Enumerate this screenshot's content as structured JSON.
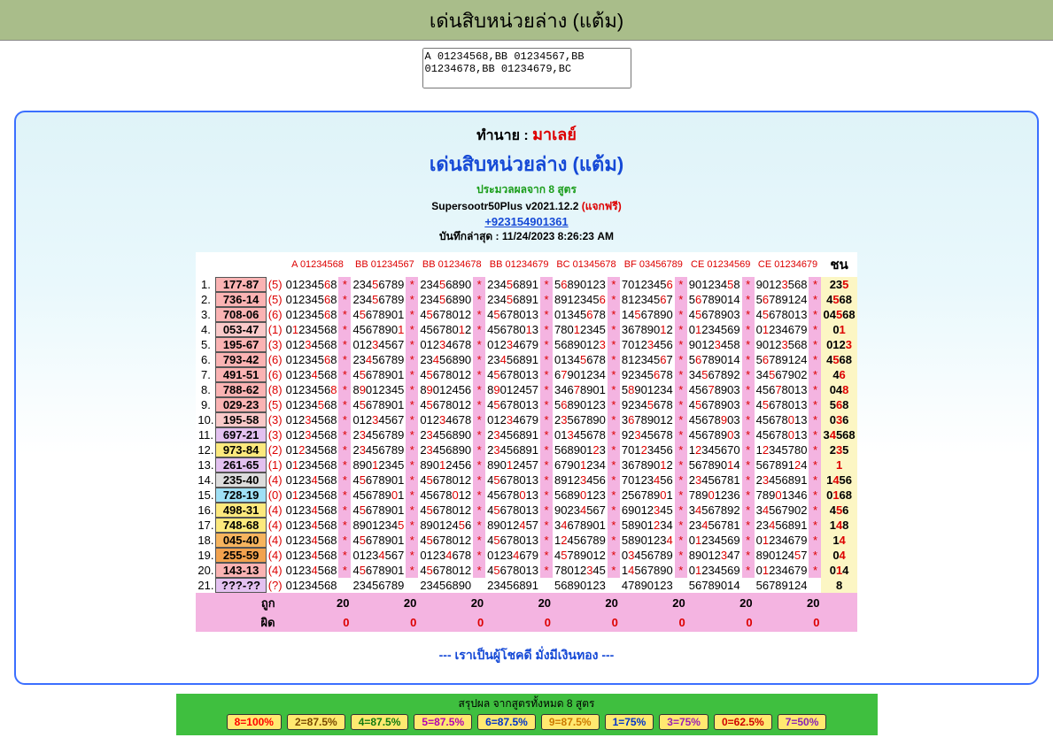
{
  "title_bar": "เด่นสิบหน่วยล่าง (แต้ม)",
  "text_input": "A 01234568,BB 01234567,BB 01234678,BB 01234679,BC",
  "header": {
    "line1_prefix": "ทำนาย : ",
    "line1_red": "มาเลย์",
    "line2": "เด่นสิบหน่วยล่าง (แต้ม)",
    "line3": "ประมวลผลจาก 8 สูตร",
    "line4_a": "Supersootr50Plus v2021.12.2 ",
    "line4_free": "(แจกฟรี)",
    "line5_phone": "+923154901361",
    "line6_prefix": "บันทึกล่าสุด : ",
    "line6_ts": "11/24/2023 8:26:23 AM"
  },
  "col_headers": [
    "A 01234568",
    "BB 01234567",
    "BB 01234678",
    "BB 01234679",
    "BC 01345678",
    "BF 03456789",
    "CE 01234569",
    "CE 01234679"
  ],
  "win_header": "ชน",
  "code_colors": {
    "pink": "#fab3b3",
    "lpink": "#f9c9c9",
    "purple": "#e3c1f0",
    "yellow": "#fce97d",
    "grey": "#dcdcdc",
    "orange": "#f6b45e",
    "orange2": "#f2a24e",
    "cyan": "#9fe0f5"
  },
  "rows": [
    {
      "n": 1,
      "code": "177-87",
      "cc": "pink",
      "cnt": 5,
      "cols": [
        [
          "012345",
          "6",
          "8"
        ],
        [
          "234",
          "5",
          "6789"
        ],
        [
          "234",
          "5",
          "6890"
        ],
        [
          "234",
          "5",
          "6891"
        ],
        [
          "5",
          "6",
          "890123"
        ],
        [
          "7012345",
          "6",
          ""
        ],
        [
          "901234",
          "5",
          "8"
        ],
        [
          "9012",
          "3",
          "568"
        ]
      ],
      "win": [
        "23",
        "5",
        ""
      ]
    },
    {
      "n": 2,
      "code": "736-14",
      "cc": "pink",
      "cnt": 5,
      "cols": [
        [
          "012345",
          "6",
          "8"
        ],
        [
          "234",
          "5",
          "6789"
        ],
        [
          "234",
          "5",
          "6890"
        ],
        [
          "234",
          "5",
          "6891"
        ],
        [
          "8912345",
          "6",
          ""
        ],
        [
          "812345",
          "6",
          "7"
        ],
        [
          "5",
          "6",
          "789014"
        ],
        [
          "5",
          "6",
          "789124"
        ]
      ],
      "win": [
        "4",
        "5",
        "68"
      ]
    },
    {
      "n": 3,
      "code": "708-06",
      "cc": "pink",
      "cnt": 6,
      "cols": [
        [
          "012345",
          "6",
          "8"
        ],
        [
          "4",
          "5",
          "678901"
        ],
        [
          "4",
          "5",
          "678012"
        ],
        [
          "4",
          "5",
          "678013"
        ],
        [
          "01345",
          "6",
          "78"
        ],
        [
          "14",
          "5",
          "67890"
        ],
        [
          "4",
          "5",
          "678903"
        ],
        [
          "4",
          "5",
          "678013"
        ]
      ],
      "win": [
        "04",
        "5",
        "68"
      ]
    },
    {
      "n": 4,
      "code": "053-47",
      "cc": "lpink",
      "cnt": 1,
      "cols": [
        [
          "0",
          "1",
          "234568"
        ],
        [
          "4567890",
          "1",
          ""
        ],
        [
          "456780",
          "1",
          "2"
        ],
        [
          "456780",
          "1",
          "3"
        ],
        [
          "780",
          "1",
          "2345"
        ],
        [
          "367890",
          "1",
          "2"
        ],
        [
          "0",
          "1",
          "234569"
        ],
        [
          "0",
          "1",
          "234679"
        ]
      ],
      "win": [
        "0",
        "1",
        ""
      ]
    },
    {
      "n": 5,
      "code": "195-67",
      "cc": "pink",
      "cnt": 3,
      "cols": [
        [
          "012",
          "3",
          "4568"
        ],
        [
          "012",
          "3",
          "4567"
        ],
        [
          "012",
          "3",
          "4678"
        ],
        [
          "012",
          "3",
          "4679"
        ],
        [
          "5689012",
          "3",
          ""
        ],
        [
          "7012",
          "3",
          "456"
        ],
        [
          "9012",
          "3",
          "458"
        ],
        [
          "9012",
          "3",
          "568"
        ]
      ],
      "win": [
        "012",
        "3",
        ""
      ]
    },
    {
      "n": 6,
      "code": "793-42",
      "cc": "pink",
      "cnt": 6,
      "cols": [
        [
          "012345",
          "6",
          "8"
        ],
        [
          "23",
          "4",
          "56789"
        ],
        [
          "23",
          "4",
          "56890"
        ],
        [
          "23",
          "4",
          "56891"
        ],
        [
          "0134",
          "5",
          "678"
        ],
        [
          "812345",
          "6",
          "7"
        ],
        [
          "5",
          "6",
          "789014"
        ],
        [
          "5",
          "6",
          "789124"
        ]
      ],
      "win": [
        "4",
        "5",
        "68"
      ]
    },
    {
      "n": 7,
      "code": "491-51",
      "cc": "pink",
      "cnt": 6,
      "cols": [
        [
          "0123",
          "4",
          "568"
        ],
        [
          "4",
          "5",
          "678901"
        ],
        [
          "4",
          "5",
          "678012"
        ],
        [
          "4",
          "5",
          "678013"
        ],
        [
          "6",
          "7",
          "901234"
        ],
        [
          "92345",
          "6",
          "78"
        ],
        [
          "34",
          "5",
          "67892"
        ],
        [
          "34",
          "5",
          "67902"
        ]
      ],
      "win": [
        "4",
        "6",
        ""
      ]
    },
    {
      "n": 8,
      "code": "788-62",
      "cc": "pink",
      "cnt": 8,
      "cols": [
        [
          "0123456",
          "8",
          ""
        ],
        [
          "8",
          "9",
          "012345"
        ],
        [
          "8",
          "9",
          "012456"
        ],
        [
          "8",
          "9",
          "012457"
        ],
        [
          "346",
          "7",
          "8901"
        ],
        [
          "5",
          "8",
          "901234"
        ],
        [
          "456",
          "7",
          "8903"
        ],
        [
          "456",
          "7",
          "8013"
        ]
      ],
      "win": [
        "04",
        "8",
        ""
      ]
    },
    {
      "n": 9,
      "code": "029-23",
      "cc": "pink",
      "cnt": 5,
      "cols": [
        [
          "01234",
          "5",
          "68"
        ],
        [
          "4",
          "5",
          "678901"
        ],
        [
          "4",
          "5",
          "678012"
        ],
        [
          "4",
          "5",
          "678013"
        ],
        [
          "5",
          "6",
          "890123"
        ],
        [
          "9234",
          "5",
          "678"
        ],
        [
          "4",
          "5",
          "678903"
        ],
        [
          "4",
          "5",
          "678013"
        ]
      ],
      "win": [
        "5",
        "6",
        "8"
      ]
    },
    {
      "n": 10,
      "code": "195-58",
      "cc": "lpink",
      "cnt": 3,
      "cols": [
        [
          "012",
          "3",
          "4568"
        ],
        [
          "012",
          "3",
          "4567"
        ],
        [
          "012",
          "3",
          "4678"
        ],
        [
          "012",
          "3",
          "4679"
        ],
        [
          "2",
          "3",
          "567890"
        ],
        [
          "3",
          "6",
          "789012"
        ],
        [
          "45678",
          "9",
          "03"
        ],
        [
          "45678",
          "0",
          "13"
        ]
      ],
      "win": [
        "0",
        "3",
        "6"
      ]
    },
    {
      "n": 11,
      "code": "697-21",
      "cc": "purple",
      "cnt": 3,
      "cols": [
        [
          "012",
          "3",
          "4568"
        ],
        [
          "2",
          "3",
          "456789"
        ],
        [
          "2",
          "3",
          "456890"
        ],
        [
          "2",
          "3",
          "456891"
        ],
        [
          "01",
          "3",
          "45678"
        ],
        [
          "92",
          "3",
          "45678"
        ],
        [
          "456789",
          "0",
          "3"
        ],
        [
          "45678",
          "0",
          "13"
        ]
      ],
      "win": [
        "3",
        "4",
        "568"
      ]
    },
    {
      "n": 12,
      "code": "973-84",
      "cc": "yellow",
      "cnt": 2,
      "cols": [
        [
          "01",
          "2",
          "34568"
        ],
        [
          "2",
          "3",
          "456789"
        ],
        [
          "2",
          "3",
          "456890"
        ],
        [
          "2",
          "3",
          "456891"
        ],
        [
          "568901",
          "2",
          "3"
        ],
        [
          "701",
          "2",
          "3456"
        ],
        [
          "1",
          "2",
          "345670"
        ],
        [
          "1",
          "2",
          "345780"
        ]
      ],
      "win": [
        "2",
        "3",
        "5"
      ]
    },
    {
      "n": 13,
      "code": "261-65",
      "cc": "purple",
      "cnt": 1,
      "cols": [
        [
          "0",
          "1",
          "234568"
        ],
        [
          "890",
          "1",
          "2345"
        ],
        [
          "890",
          "1",
          "2456"
        ],
        [
          "890",
          "1",
          "2457"
        ],
        [
          "6790",
          "1",
          "234"
        ],
        [
          "367890",
          "1",
          "2"
        ],
        [
          "567890",
          "1",
          "4"
        ],
        [
          "567891",
          "2",
          "4"
        ]
      ],
      "win": [
        "",
        "1",
        ""
      ]
    },
    {
      "n": 14,
      "code": "235-40",
      "cc": "grey",
      "cnt": 4,
      "cols": [
        [
          "0123",
          "4",
          "568"
        ],
        [
          "4",
          "5",
          "678901"
        ],
        [
          "4",
          "5",
          "678012"
        ],
        [
          "4",
          "5",
          "678013"
        ],
        [
          "8912",
          "3",
          "456"
        ],
        [
          "70123",
          "4",
          "56"
        ],
        [
          "2",
          "3",
          "456781"
        ],
        [
          "2",
          "3",
          "456891"
        ]
      ],
      "win": [
        "1",
        "4",
        "56"
      ]
    },
    {
      "n": 15,
      "code": "728-19",
      "cc": "cyan",
      "cnt": 0,
      "cols": [
        [
          "0",
          "1",
          "234568"
        ],
        [
          "456789",
          "0",
          "1"
        ],
        [
          "45678",
          "0",
          "12"
        ],
        [
          "45678",
          "0",
          "13"
        ],
        [
          "5689",
          "0",
          "123"
        ],
        [
          "256789",
          "0",
          "1"
        ],
        [
          "789",
          "0",
          "1236"
        ],
        [
          "789",
          "0",
          "1346"
        ]
      ],
      "win": [
        "0",
        "1",
        "68"
      ]
    },
    {
      "n": 16,
      "code": "498-31",
      "cc": "yellow",
      "cnt": 4,
      "cols": [
        [
          "0123",
          "4",
          "568"
        ],
        [
          "4",
          "5",
          "678901"
        ],
        [
          "4",
          "5",
          "678012"
        ],
        [
          "4",
          "5",
          "678013"
        ],
        [
          "9023",
          "4",
          "567"
        ],
        [
          "69012",
          "3",
          "45"
        ],
        [
          "3",
          "4",
          "567892"
        ],
        [
          "3",
          "4",
          "567902"
        ]
      ],
      "win": [
        "4",
        "5",
        "6"
      ]
    },
    {
      "n": 17,
      "code": "748-68",
      "cc": "yellow",
      "cnt": 4,
      "cols": [
        [
          "0123",
          "4",
          "568"
        ],
        [
          "8901234",
          "5",
          ""
        ],
        [
          "890124",
          "5",
          "6"
        ],
        [
          "89012",
          "4",
          "57"
        ],
        [
          "3",
          "4",
          "678901"
        ],
        [
          "58901",
          "2",
          "34"
        ],
        [
          "23",
          "4",
          "56781"
        ],
        [
          "23",
          "4",
          "56891"
        ]
      ],
      "win": [
        "1",
        "4",
        "8"
      ]
    },
    {
      "n": 18,
      "code": "045-40",
      "cc": "orange",
      "cnt": 4,
      "cols": [
        [
          "0123",
          "4",
          "568"
        ],
        [
          "4",
          "5",
          "678901"
        ],
        [
          "4",
          "5",
          "678012"
        ],
        [
          "4",
          "5",
          "678013"
        ],
        [
          "1",
          "2",
          "456789"
        ],
        [
          "5890123",
          "4",
          ""
        ],
        [
          "0",
          "1",
          "234569"
        ],
        [
          "0",
          "1",
          "234679"
        ]
      ],
      "win": [
        "1",
        "4",
        ""
      ]
    },
    {
      "n": 19,
      "code": "255-59",
      "cc": "orange2",
      "cnt": 4,
      "cols": [
        [
          "0123",
          "4",
          "568"
        ],
        [
          "0123",
          "4",
          "567"
        ],
        [
          "0123",
          "4",
          "678"
        ],
        [
          "0123",
          "4",
          "679"
        ],
        [
          "4",
          "5",
          "789012"
        ],
        [
          "0",
          "3",
          "456789"
        ],
        [
          "89012",
          "3",
          "47"
        ],
        [
          "890124",
          "5",
          "7"
        ]
      ],
      "win": [
        "0",
        "4",
        ""
      ]
    },
    {
      "n": 20,
      "code": "143-13",
      "cc": "pink",
      "cnt": 4,
      "cols": [
        [
          "0123",
          "4",
          "568"
        ],
        [
          "4",
          "5",
          "678901"
        ],
        [
          "4",
          "5",
          "678012"
        ],
        [
          "4",
          "5",
          "678013"
        ],
        [
          "78012",
          "3",
          "45"
        ],
        [
          "1",
          "4",
          "567890"
        ],
        [
          "0",
          "1",
          "234569"
        ],
        [
          "0",
          "1",
          "234679"
        ]
      ],
      "win": [
        "0",
        "1",
        "4"
      ]
    },
    {
      "n": 21,
      "code": "???-??",
      "cc": "purple",
      "cnt": "?",
      "cols": [
        [
          "01234568",
          "",
          ""
        ],
        [
          "23456789",
          "",
          ""
        ],
        [
          "23456890",
          "",
          ""
        ],
        [
          "23456891",
          "",
          ""
        ],
        [
          "56890123",
          "",
          ""
        ],
        [
          "47890123",
          "",
          ""
        ],
        [
          "56789014",
          "",
          ""
        ],
        [
          "56789124",
          "",
          ""
        ]
      ],
      "star": false,
      "win": [
        "8",
        "",
        ""
      ]
    }
  ],
  "totals": {
    "label1": "ถูก",
    "label2": "ผิด",
    "v20": "20",
    "v0": "0"
  },
  "luck_text": "--- เราเป็นผู้โชคดี มั่งมีเงินทอง ---",
  "summary": {
    "title": "สรุปผล จากสูตรทั้งหมด 8 สูตร",
    "chips": [
      {
        "t": "8=100%",
        "c": "#ff0000"
      },
      {
        "t": "2=87.5%",
        "c": "#7a4a00"
      },
      {
        "t": "4=87.5%",
        "c": "#107a10"
      },
      {
        "t": "5=87.5%",
        "c": "#b300b3"
      },
      {
        "t": "6=87.5%",
        "c": "#0033cc"
      },
      {
        "t": "9=87.5%",
        "c": "#cc7a00"
      },
      {
        "t": "1=75%",
        "c": "#0033cc"
      },
      {
        "t": "3=75%",
        "c": "#9b1fb5"
      },
      {
        "t": "0=62.5%",
        "c": "#d00000"
      },
      {
        "t": "7=50%",
        "c": "#8a23b5"
      }
    ]
  }
}
